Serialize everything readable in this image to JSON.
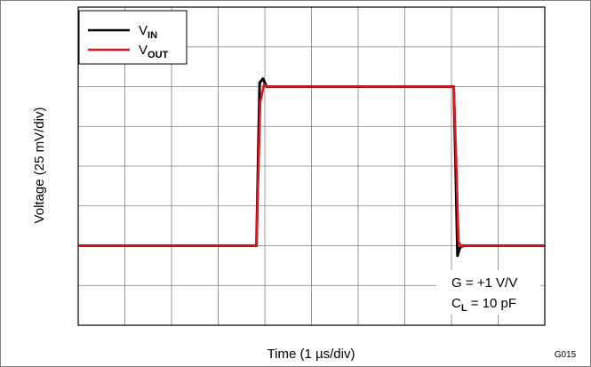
{
  "chart_data": {
    "type": "line",
    "xlabel": "Time (1 µs/div)",
    "ylabel": "Voltage (25 mV/div)",
    "figure_code": "G015",
    "x_divisions": 10,
    "y_divisions": 8,
    "xlim": [
      0,
      10
    ],
    "ylim": [
      0,
      8
    ],
    "grid": true,
    "legend_position": "top-left",
    "annotation_lines": [
      {
        "main": "G = +1 V/V",
        "sub": ""
      },
      {
        "main": "C",
        "sub": "L",
        "rest": " = 10 pF"
      }
    ],
    "series": [
      {
        "name_main": "V",
        "name_sub": "IN",
        "color": "#000000",
        "x": [
          0,
          3.82,
          3.89,
          3.96,
          4.04,
          8.05,
          8.09,
          8.13,
          8.18,
          8.26,
          10
        ],
        "y": [
          2.0,
          2.0,
          6.1,
          6.2,
          6.0,
          6.0,
          4.0,
          1.75,
          1.95,
          2.0,
          2.0
        ]
      },
      {
        "name_main": "V",
        "name_sub": "OUT",
        "color": "#e8141c",
        "x": [
          0,
          3.82,
          3.9,
          3.98,
          4.08,
          8.05,
          8.1,
          8.15,
          8.22,
          8.3,
          10
        ],
        "y": [
          2.0,
          2.0,
          5.6,
          6.05,
          6.0,
          6.0,
          4.2,
          2.1,
          1.97,
          2.0,
          2.0
        ]
      }
    ]
  }
}
